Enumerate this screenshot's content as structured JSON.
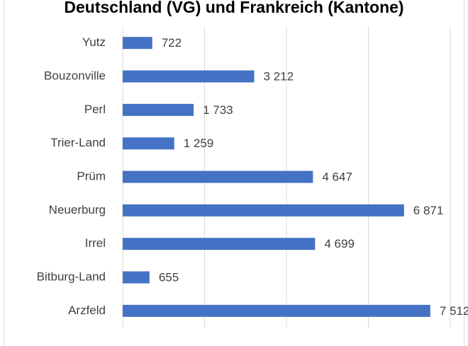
{
  "chart_data": {
    "type": "bar",
    "orientation": "horizontal",
    "title": "Deutschland (VG) und Frankreich (Kantone)",
    "categories": [
      "Yutz",
      "Bouzonville",
      "Perl",
      "Trier-Land",
      "Prüm",
      "Neuerburg",
      "Irrel",
      "Bitburg-Land",
      "Arzfeld"
    ],
    "values": [
      722,
      3212,
      1733,
      1259,
      4647,
      6871,
      4699,
      655,
      7512
    ],
    "value_labels": [
      "722",
      "3 212",
      "1 733",
      "1 259",
      "4 647",
      "6 871",
      "4 699",
      "655",
      "7 512"
    ],
    "color": "#4472c4",
    "xlim": [
      0,
      8000
    ],
    "xticks": [
      0,
      2000,
      4000,
      6000,
      8000
    ],
    "grid": true
  }
}
